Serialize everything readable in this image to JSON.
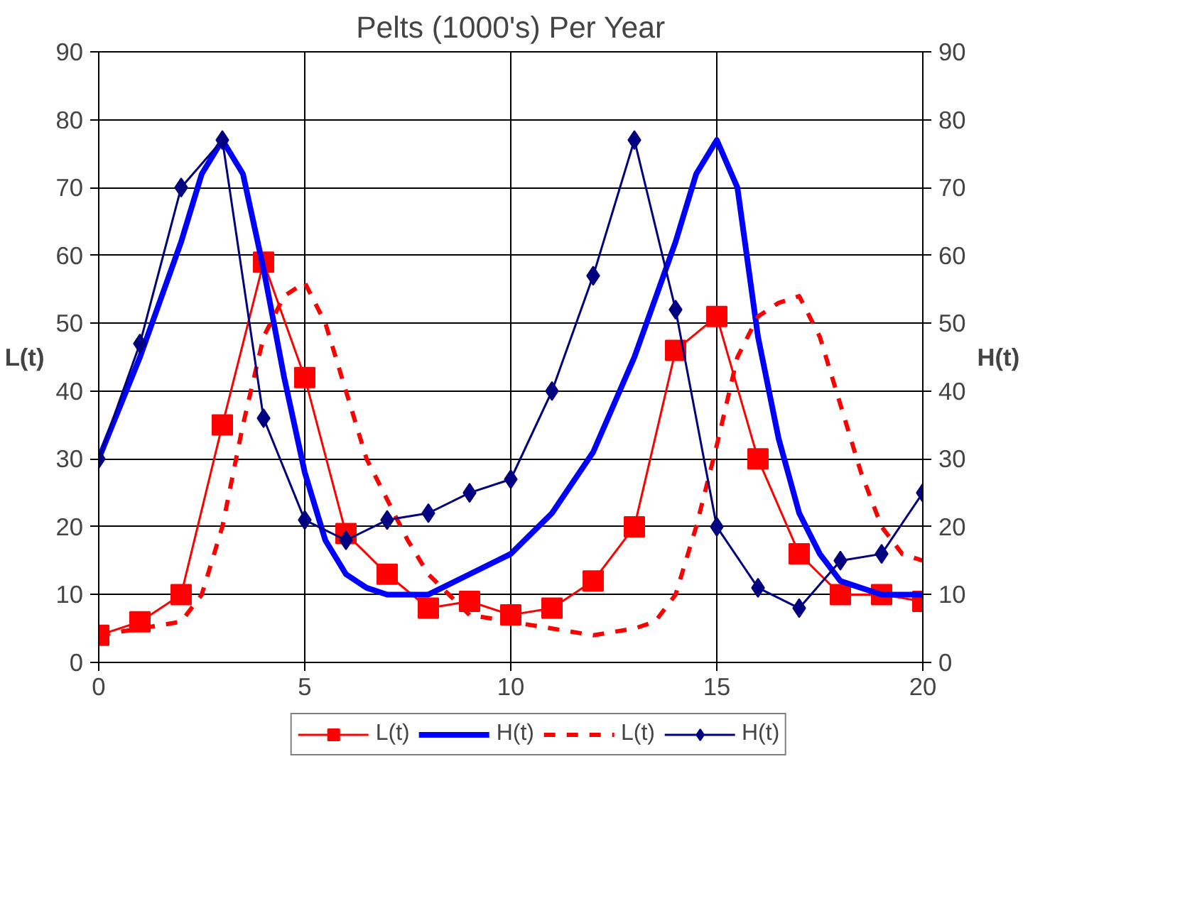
{
  "chart_data": {
    "type": "line",
    "title": "Pelts (1000's) Per Year",
    "ylabel": "L(t)",
    "y2label": "H(t)",
    "xlim": [
      0,
      20
    ],
    "xticks": [
      0,
      5,
      10,
      15,
      20
    ],
    "ylim": [
      0,
      90
    ],
    "yticks": [
      0,
      10,
      20,
      30,
      40,
      50,
      60,
      70,
      80,
      90
    ],
    "y2lim": [
      0,
      90
    ],
    "y2ticks": [
      0,
      10,
      20,
      30,
      40,
      50,
      60,
      70,
      80,
      90
    ],
    "grid": true,
    "legend": "bottom",
    "series": [
      {
        "name": "L(t)",
        "color": "#ff0000",
        "marker": "square",
        "line_style": "solid",
        "x": [
          0,
          1,
          2,
          3,
          4,
          5,
          6,
          7,
          8,
          9,
          10,
          11,
          12,
          13,
          14,
          15,
          16,
          17,
          18,
          19,
          20
        ],
        "values": [
          4,
          6,
          10,
          35,
          59,
          42,
          19,
          13,
          8,
          9,
          7,
          8,
          12,
          20,
          46,
          51,
          30,
          16,
          10,
          10,
          9
        ]
      },
      {
        "name": "H(t)",
        "color": "#0000ff",
        "marker": "none",
        "line_style": "solid",
        "x": [
          0,
          1,
          2,
          2.5,
          3,
          3.5,
          4,
          4.5,
          5,
          5.5,
          6,
          6.5,
          7,
          7.5,
          8,
          9,
          10,
          11,
          12,
          13,
          14,
          14.5,
          15,
          15.5,
          16,
          16.5,
          17,
          17.5,
          18,
          19,
          20
        ],
        "values": [
          30,
          45,
          62,
          72,
          77,
          72,
          58,
          42,
          28,
          18,
          13,
          11,
          10,
          10,
          10,
          13,
          16,
          22,
          31,
          45,
          62,
          72,
          77,
          70,
          48,
          33,
          22,
          16,
          12,
          10,
          10
        ]
      },
      {
        "name": "L(t)",
        "color": "#ff0000",
        "marker": "none",
        "line_style": "dashed",
        "x": [
          0,
          1,
          2,
          2.5,
          3,
          3.5,
          4,
          4.5,
          5,
          5.5,
          6,
          6.5,
          7,
          7.5,
          8,
          9,
          10,
          11,
          12,
          13,
          13.5,
          14,
          14.5,
          15,
          15.5,
          16,
          16.5,
          17,
          17.5,
          18,
          18.5,
          19,
          19.5,
          20
        ],
        "values": [
          4,
          5,
          6,
          10,
          20,
          35,
          48,
          54,
          56,
          50,
          40,
          30,
          24,
          18,
          13,
          7,
          6,
          5,
          4,
          5,
          6,
          10,
          20,
          32,
          45,
          51,
          53,
          54,
          48,
          38,
          28,
          20,
          16,
          15
        ]
      },
      {
        "name": "H(t)",
        "color": "#000080",
        "marker": "diamond",
        "line_style": "solid",
        "x": [
          0,
          1,
          2,
          3,
          4,
          5,
          6,
          7,
          8,
          9,
          10,
          11,
          12,
          13,
          14,
          15,
          16,
          17,
          18,
          19,
          20
        ],
        "values": [
          30,
          47,
          70,
          77,
          36,
          21,
          18,
          21,
          22,
          25,
          27,
          40,
          57,
          77,
          52,
          20,
          11,
          8,
          15,
          16,
          25
        ]
      }
    ]
  }
}
